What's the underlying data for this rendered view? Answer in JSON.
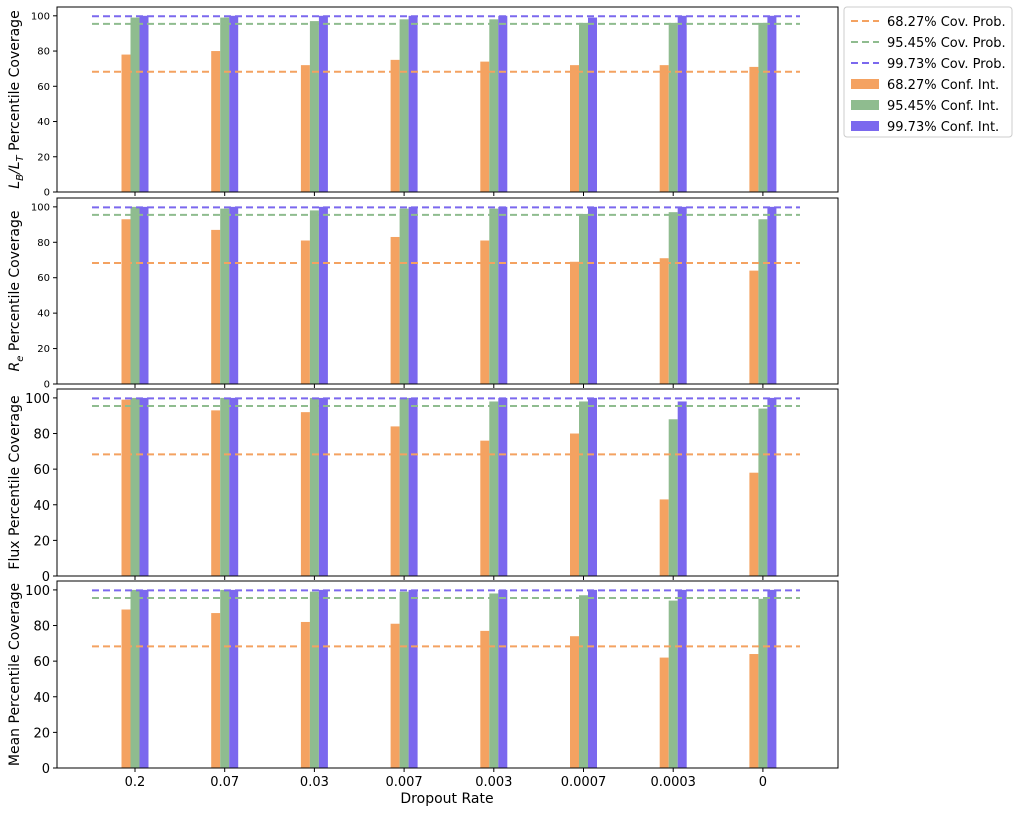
{
  "chart_data": {
    "type": "bar",
    "xlabel": "Dropout Rate",
    "categories": [
      "0.2",
      "0.07",
      "0.03",
      "0.007",
      "0.003",
      "0.0007",
      "0.0003",
      "0"
    ],
    "ylim": [
      0,
      105
    ],
    "grid": false,
    "legend_position": "outside top-right",
    "colors": {
      "c68": "#f4a261",
      "c95": "#8fbc8f",
      "c99": "#7b68ee"
    },
    "legend": [
      {
        "label": "68.27% Cov. Prob.",
        "kind": "line",
        "color_key": "c68"
      },
      {
        "label": "95.45% Cov. Prob.",
        "kind": "line",
        "color_key": "c95"
      },
      {
        "label": "99.73% Cov. Prob.",
        "kind": "line",
        "color_key": "c99"
      },
      {
        "label": "68.27% Conf. Int.",
        "kind": "bar",
        "color_key": "c68"
      },
      {
        "label": "95.45% Conf. Int.",
        "kind": "bar",
        "color_key": "c95"
      },
      {
        "label": "99.73% Conf. Int.",
        "kind": "bar",
        "color_key": "c99"
      }
    ],
    "reference_lines": [
      {
        "value": 68.27,
        "color_key": "c68"
      },
      {
        "value": 95.45,
        "color_key": "c95"
      },
      {
        "value": 99.73,
        "color_key": "c99"
      }
    ],
    "panels": [
      {
        "ylabel_main": "L",
        "ylabel_sub1": "B",
        "ylabel_mid": "/L",
        "ylabel_sub2": "T",
        "ylabel_rest": " Percentile Coverage",
        "yticks": [
          "0",
          "20",
          "40",
          "60",
          "80",
          "100"
        ],
        "series": [
          {
            "name": "68.27% Conf. Int.",
            "color_key": "c68",
            "values": [
              78,
              80,
              72,
              75,
              74,
              72,
              72,
              71
            ]
          },
          {
            "name": "95.45% Conf. Int.",
            "color_key": "c95",
            "values": [
              99,
              99,
              97,
              98,
              98,
              96,
              96,
              96
            ]
          },
          {
            "name": "99.73% Conf. Int.",
            "color_key": "c99",
            "values": [
              100,
              100,
              100,
              100,
              100,
              99,
              100,
              100
            ]
          }
        ]
      },
      {
        "ylabel_main": "R",
        "ylabel_sub1": "e",
        "ylabel_mid": "",
        "ylabel_sub2": "",
        "ylabel_rest": " Percentile Coverage",
        "yticks": [
          "0",
          "20",
          "40",
          "60",
          "80",
          "100"
        ],
        "series": [
          {
            "name": "68.27% Conf. Int.",
            "color_key": "c68",
            "values": [
              93,
              87,
              81,
              83,
              81,
              69,
              71,
              64
            ]
          },
          {
            "name": "95.45% Conf. Int.",
            "color_key": "c95",
            "values": [
              100,
              99,
              98,
              99,
              99,
              96,
              97,
              93
            ]
          },
          {
            "name": "99.73% Conf. Int.",
            "color_key": "c99",
            "values": [
              100,
              100,
              100,
              100,
              100,
              100,
              100,
              100
            ]
          }
        ]
      },
      {
        "ylabel_main": "Flux Percentile Coverage",
        "ylabel_sub1": "",
        "ylabel_mid": "",
        "ylabel_sub2": "",
        "ylabel_rest": "",
        "yticks": [
          "0",
          "20",
          "40",
          "60",
          "80",
          "100"
        ],
        "series": [
          {
            "name": "68.27% Conf. Int.",
            "color_key": "c68",
            "values": [
              99,
              93,
              92,
              84,
              76,
              80,
              43,
              58
            ]
          },
          {
            "name": "95.45% Conf. Int.",
            "color_key": "c95",
            "values": [
              100,
              100,
              100,
              100,
              98,
              98,
              88,
              94
            ]
          },
          {
            "name": "99.73% Conf. Int.",
            "color_key": "c99",
            "values": [
              100,
              100,
              100,
              100,
              100,
              100,
              98,
              100
            ]
          }
        ]
      },
      {
        "ylabel_main": "Mean Percentile Coverage",
        "ylabel_sub1": "",
        "ylabel_mid": "",
        "ylabel_sub2": "",
        "ylabel_rest": "",
        "yticks": [
          "0",
          "20",
          "40",
          "60",
          "80",
          "100"
        ],
        "series": [
          {
            "name": "68.27% Conf. Int.",
            "color_key": "c68",
            "values": [
              89,
              87,
              82,
              81,
              77,
              74,
              62,
              64
            ]
          },
          {
            "name": "95.45% Conf. Int.",
            "color_key": "c95",
            "values": [
              100,
              100,
              99,
              99,
              98,
              97,
              94,
              95
            ]
          },
          {
            "name": "99.73% Conf. Int.",
            "color_key": "c99",
            "values": [
              100,
              100,
              100,
              100,
              100,
              100,
              100,
              100
            ]
          }
        ]
      }
    ]
  }
}
